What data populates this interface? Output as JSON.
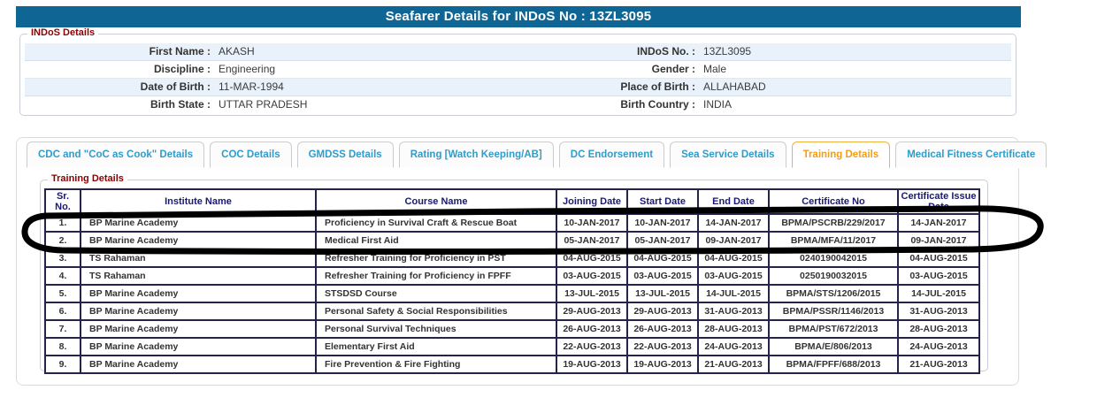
{
  "header": {
    "title": "Seafarer Details for INDoS No : 13ZL3095"
  },
  "indos_details": {
    "legend": "INDoS Details",
    "rows": [
      {
        "label_left": "First Name :",
        "value_left": "AKASH",
        "label_right": "INDoS No. :",
        "value_right": "13ZL3095"
      },
      {
        "label_left": "Discipline :",
        "value_left": "Engineering",
        "label_right": "Gender :",
        "value_right": "Male"
      },
      {
        "label_left": "Date of Birth :",
        "value_left": "11-MAR-1994",
        "label_right": "Place of Birth :",
        "value_right": "ALLAHABAD"
      },
      {
        "label_left": "Birth State :",
        "value_left": "UTTAR PRADESH",
        "label_right": "Birth Country :",
        "value_right": "INDIA"
      }
    ]
  },
  "tabs": [
    {
      "label": "CDC and \"CoC as Cook\" Details",
      "active": false
    },
    {
      "label": "COC Details",
      "active": false
    },
    {
      "label": "GMDSS Details",
      "active": false
    },
    {
      "label": "Rating [Watch Keeping/AB]",
      "active": false
    },
    {
      "label": "DC Endorsement",
      "active": false
    },
    {
      "label": "Sea Service Details",
      "active": false
    },
    {
      "label": "Training Details",
      "active": true
    },
    {
      "label": "Medical Fitness Certificate",
      "active": false
    }
  ],
  "training": {
    "legend": "Training Details",
    "columns": [
      "Sr. No.",
      "Institute Name",
      "Course Name",
      "Joining Date",
      "Start Date",
      "End Date",
      "Certificate No",
      "Certificate Issue Date"
    ],
    "rows": [
      [
        "1.",
        "BP Marine Academy",
        "Proficiency in Survival Craft & Rescue Boat",
        "10-JAN-2017",
        "10-JAN-2017",
        "14-JAN-2017",
        "BPMA/PSCRB/229/2017",
        "14-JAN-2017"
      ],
      [
        "2.",
        "BP Marine Academy",
        "Medical First Aid",
        "05-JAN-2017",
        "05-JAN-2017",
        "09-JAN-2017",
        "BPMA/MFA/11/2017",
        "09-JAN-2017"
      ],
      [
        "3.",
        "TS Rahaman",
        "Refresher Training for Proficiency in PST",
        "04-AUG-2015",
        "04-AUG-2015",
        "04-AUG-2015",
        "0240190042015",
        "04-AUG-2015"
      ],
      [
        "4.",
        "TS Rahaman",
        "Refresher Training for Proficiency in FPFF",
        "03-AUG-2015",
        "03-AUG-2015",
        "03-AUG-2015",
        "0250190032015",
        "03-AUG-2015"
      ],
      [
        "5.",
        "BP Marine Academy",
        "STSDSD Course",
        "13-JUL-2015",
        "13-JUL-2015",
        "14-JUL-2015",
        "BPMA/STS/1206/2015",
        "14-JUL-2015"
      ],
      [
        "6.",
        "BP Marine Academy",
        "Personal Safety & Social Responsibilities",
        "29-AUG-2013",
        "29-AUG-2013",
        "31-AUG-2013",
        "BPMA/PSSR/1146/2013",
        "31-AUG-2013"
      ],
      [
        "7.",
        "BP Marine Academy",
        "Personal Survival Techniques",
        "26-AUG-2013",
        "26-AUG-2013",
        "28-AUG-2013",
        "BPMA/PST/672/2013",
        "28-AUG-2013"
      ],
      [
        "8.",
        "BP Marine Academy",
        "Elementary First Aid",
        "22-AUG-2013",
        "22-AUG-2013",
        "24-AUG-2013",
        "BPMA/E/806/2013",
        "24-AUG-2013"
      ],
      [
        "9.",
        "BP Marine Academy",
        "Fire Prevention & Fire Fighting",
        "19-AUG-2013",
        "19-AUG-2013",
        "21-AUG-2013",
        "BPMA/FPFF/688/2013",
        "21-AUG-2013"
      ]
    ]
  },
  "annotation": {
    "type": "hand-drawn-ellipse",
    "color": "#000000",
    "highlights": "training table rows 1 and 2"
  },
  "colors": {
    "title_bar": "#0f6695",
    "legend_maroon": "#8b0000",
    "tab_text": "#2f9ccb",
    "tab_active_text": "#f59d14",
    "tab_active_border": "#f0b23f",
    "table_border": "#23234c",
    "table_header_text": "#191970",
    "row_alt_blue": "#e9f2fb"
  }
}
